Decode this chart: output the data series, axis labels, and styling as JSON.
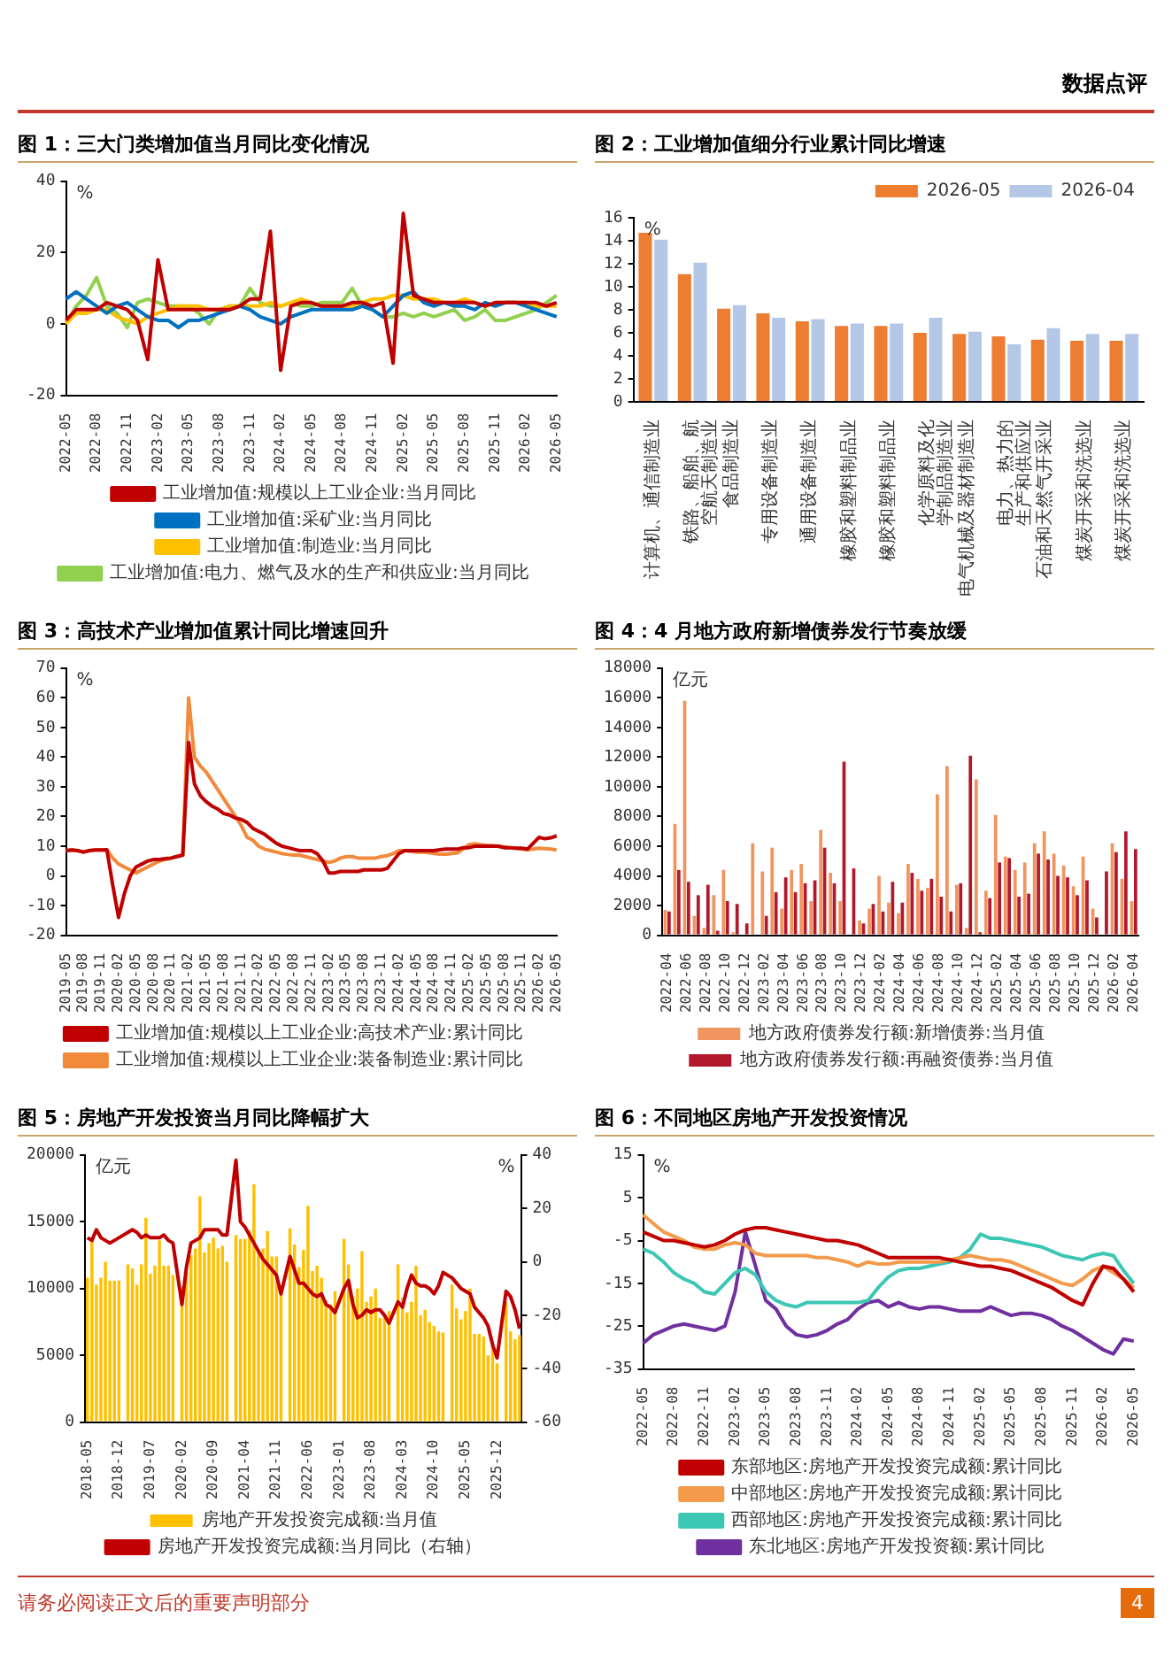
{
  "chart_data": [
    {
      "type": "line",
      "title": "图 1：三大门类增加值当月同比变化情况",
      "ylabel": "%",
      "ylim": [
        -20,
        40
      ],
      "yticks": [
        -20,
        0,
        20,
        40
      ],
      "legend": "bottom",
      "annotations": [
        "数据点评"
      ],
      "categories": [
        "2022-05",
        null,
        null,
        "2022-08",
        null,
        null,
        "2022-11",
        null,
        null,
        "2023-02",
        null,
        null,
        "2023-05",
        null,
        null,
        "2023-08",
        null,
        null,
        "2023-11",
        null,
        null,
        "2024-02",
        null,
        null,
        "2024-05",
        null,
        null,
        "2024-08",
        null,
        null,
        "2024-11",
        null,
        null,
        "2025-02",
        null,
        null,
        "2025-05",
        null,
        null,
        "2025-08",
        null,
        null,
        "2025-11",
        null,
        null,
        "2026-02",
        null,
        null,
        "2026-05"
      ],
      "series": [
        {
          "name": "工业增加值:规模以上工业企业:当月同比",
          "color": "#c00000",
          "values": [
            1,
            4,
            4,
            4,
            6,
            5,
            4,
            1,
            -10,
            18,
            4,
            4,
            4,
            4,
            4,
            4,
            4,
            5,
            7,
            7,
            26,
            -13,
            5,
            6,
            6,
            5,
            5,
            5,
            6,
            6,
            5,
            6,
            -11,
            31,
            8,
            7,
            6,
            6,
            6,
            6,
            6,
            5,
            6,
            6,
            6,
            6,
            6,
            5,
            6
          ]
        },
        {
          "name": "工业增加值:采矿业:当月同比",
          "color": "#0070c0",
          "values": [
            7,
            9,
            7,
            5,
            3,
            5,
            6,
            4,
            2,
            1,
            1,
            -1,
            1,
            1,
            2,
            3,
            4,
            5,
            4,
            2,
            1,
            0,
            2,
            3,
            4,
            4,
            4,
            4,
            4,
            5,
            4,
            2,
            5,
            8,
            9,
            6,
            5,
            6,
            5,
            5,
            4,
            6,
            5,
            6,
            6,
            5,
            4,
            3,
            2
          ]
        },
        {
          "name": "工业增加值:制造业:当月同比",
          "color": "#ffc000",
          "values": [
            0,
            3,
            3,
            4,
            4,
            2,
            1,
            0,
            2,
            3,
            4,
            5,
            5,
            5,
            4,
            4,
            5,
            5,
            5,
            5,
            6,
            5,
            6,
            7,
            6,
            5,
            5,
            5,
            5,
            6,
            7,
            7,
            8,
            8,
            7,
            7,
            7,
            6,
            6,
            7,
            6,
            5,
            6,
            6,
            6,
            6,
            5,
            5,
            5
          ]
        },
        {
          "name": "工业增加值:电力、燃气及水的生产和供应业:当月同比",
          "color": "#92d050",
          "values": [
            0,
            5,
            8,
            13,
            5,
            3,
            -1,
            6,
            7,
            6,
            5,
            5,
            5,
            3,
            0,
            4,
            5,
            5,
            10,
            6,
            5,
            5,
            6,
            5,
            5,
            6,
            6,
            6,
            10,
            5,
            4,
            2,
            2,
            3,
            2,
            3,
            2,
            3,
            4,
            1,
            2,
            4,
            1,
            1,
            2,
            3,
            4,
            6,
            8
          ]
        }
      ]
    },
    {
      "type": "bar",
      "title": "图 2：工业增加值细分行业累计同比增速",
      "ylabel": "%",
      "ylim": [
        0,
        16
      ],
      "yticks": [
        0,
        2,
        4,
        6,
        8,
        10,
        12,
        14,
        16
      ],
      "legend": "top right",
      "categories": [
        "计算机、通信制造业",
        "铁路、船舶、航空航天制造业",
        "食品制造业",
        "专用设备制造业",
        "通用设备制造业",
        "橡胶和塑料制品业",
        "橡胶和塑料制品业",
        "化学原料及化学制品制造业",
        "电气机械及器材制造业",
        "电力、热力的生产和供应业",
        "石油和天然气开采业",
        "煤炭开采和洗选业",
        "煤炭开采和洗选业"
      ],
      "series": [
        {
          "name": "2026-05",
          "color": "#ed7d31",
          "values": [
            14.7,
            11.1,
            8.1,
            7.7,
            7.0,
            6.6,
            6.6,
            6.0,
            5.9,
            5.7,
            5.4,
            5.3,
            5.3
          ]
        },
        {
          "name": "2026-04",
          "color": "#b4c7e7",
          "values": [
            14.1,
            12.1,
            8.4,
            7.3,
            7.2,
            6.8,
            6.8,
            7.3,
            6.1,
            5.0,
            6.4,
            5.9,
            5.9
          ]
        }
      ]
    },
    {
      "type": "line",
      "title": "图 3：高技术产业增加值累计同比增速回升",
      "ylabel": "%",
      "ylim": [
        -20,
        70
      ],
      "yticks": [
        -20,
        -10,
        0,
        10,
        20,
        30,
        40,
        50,
        60,
        70
      ],
      "legend": "bottom",
      "categories": [
        "2019-05",
        null,
        null,
        "2019-08",
        null,
        null,
        "2019-11",
        null,
        null,
        "2020-02",
        null,
        null,
        "2020-05",
        null,
        null,
        "2020-08",
        null,
        null,
        "2020-11",
        null,
        null,
        "2021-02",
        null,
        null,
        "2021-05",
        null,
        null,
        "2021-08",
        null,
        null,
        "2021-11",
        null,
        null,
        "2022-02",
        null,
        null,
        "2022-05",
        null,
        null,
        "2022-08",
        null,
        null,
        "2022-11",
        null,
        null,
        "2023-02",
        null,
        null,
        "2023-05",
        null,
        null,
        "2023-08",
        null,
        null,
        "2023-11",
        null,
        null,
        "2024-02",
        null,
        null,
        "2024-05",
        null,
        null,
        "2024-08",
        null,
        null,
        "2024-11",
        null,
        null,
        "2025-02",
        null,
        null,
        "2025-05",
        null,
        null,
        "2025-08",
        null,
        null,
        "2025-11",
        null,
        null,
        "2026-02",
        null,
        null,
        "2026-05"
      ],
      "series": [
        {
          "name": "工业增加值:规模以上工业企业:高技术产业:累计同比",
          "color": "#c00000",
          "values": [
            8.5,
            8.7,
            8.5,
            8,
            8.5,
            8.7,
            8.7,
            8.8,
            -3,
            -14,
            -6,
            0,
            3,
            4,
            5,
            5.5,
            5.5,
            5.8,
            6,
            6.5,
            7,
            45,
            31,
            27,
            25,
            23.5,
            22.5,
            21,
            20.5,
            19.5,
            19,
            18,
            16,
            15,
            14,
            12.5,
            11,
            10,
            9.5,
            9,
            8.5,
            8.5,
            8.5,
            7.5,
            5,
            1,
            1,
            1.5,
            1.5,
            1.5,
            1.5,
            2,
            2,
            2,
            2,
            2.5,
            5,
            7.5,
            8.5,
            8.5,
            8.5,
            8.5,
            8.5,
            8.5,
            8.8,
            9,
            9,
            9,
            9.5,
            9.5,
            10,
            10,
            10,
            10,
            10,
            9.5,
            9.5,
            9.3,
            9.3,
            9,
            11,
            13,
            12.5,
            12.8,
            13.5
          ]
        },
        {
          "name": "工业增加值:规模以上工业企业:装备制造业:累计同比",
          "color": "#f28a3c",
          "values": [
            8.5,
            8.7,
            8.5,
            8,
            8.5,
            8.7,
            8.7,
            8.8,
            6,
            4,
            3,
            2,
            1,
            2,
            3,
            4,
            5,
            5.5,
            6,
            6.6,
            7,
            60,
            40,
            37,
            35,
            32,
            29,
            26,
            23,
            20,
            17,
            13,
            12,
            10,
            9,
            8.5,
            8,
            7.5,
            7.2,
            7,
            7,
            6.5,
            6,
            5.5,
            5,
            4.5,
            5,
            6,
            6.5,
            6.5,
            6,
            6,
            6,
            6,
            6.5,
            6.8,
            7.5,
            8.5,
            8.5,
            8.3,
            8,
            8,
            7.8,
            7.5,
            7.3,
            7.3,
            7.5,
            7.7,
            9,
            10.5,
            10.8,
            10.5,
            10.3,
            10.2,
            10,
            9.8,
            9.5,
            9.3,
            9,
            8.8,
            9,
            9.3,
            9.2,
            9,
            8.7
          ]
        }
      ]
    },
    {
      "type": "bar",
      "title": "图 4：4 月地方政府新增债券发行节奏放缓",
      "ylabel": "亿元",
      "ylim": [
        0,
        18000
      ],
      "yticks": [
        0,
        2000,
        4000,
        6000,
        8000,
        10000,
        12000,
        14000,
        16000,
        18000
      ],
      "legend": "bottom",
      "categories": [
        "2022-04",
        null,
        "2022-06",
        null,
        "2022-08",
        null,
        "2022-10",
        null,
        "2022-12",
        null,
        "2023-02",
        null,
        "2023-04",
        null,
        "2023-06",
        null,
        "2023-08",
        null,
        "2023-10",
        null,
        "2023-12",
        null,
        "2024-02",
        null,
        "2024-04",
        null,
        "2024-06",
        null,
        "2024-08",
        null,
        "2024-10",
        null,
        "2024-12",
        null,
        "2025-02",
        null,
        "2025-04",
        null,
        "2025-06",
        null,
        "2025-08",
        null,
        "2025-10",
        null,
        "2025-12",
        null,
        "2026-02",
        null,
        "2026-04"
      ],
      "series": [
        {
          "name": "地方政府债券发行额:新增债券:当月值",
          "color": "#f0955f",
          "values": [
            1700,
            7500,
            15800,
            1300,
            500,
            2700,
            4400,
            200,
            null,
            6200,
            4300,
            5900,
            1800,
            4400,
            4800,
            2300,
            7100,
            4200,
            2300,
            null,
            1000,
            1800,
            4000,
            2200,
            1500,
            4800,
            3800,
            3200,
            9500,
            11400,
            3400,
            500,
            10500,
            3000,
            8100,
            5300,
            4400,
            4900,
            6200,
            7000,
            5500,
            4700,
            3300,
            5300,
            1800,
            null,
            6200,
            3800,
            2300
          ]
        },
        {
          "name": "地方政府债券发行额:再融资债券:当月值",
          "color": "#b2182b",
          "values": [
            1600,
            4400,
            3600,
            2700,
            3400,
            300,
            2300,
            2100,
            800,
            null,
            1300,
            2900,
            3900,
            2900,
            3500,
            3700,
            5900,
            3500,
            11700,
            4500,
            800,
            2100,
            1600,
            3600,
            2200,
            4200,
            3000,
            3800,
            2600,
            1600,
            3500,
            12100,
            200,
            2500,
            4900,
            5200,
            2600,
            2800,
            5500,
            5100,
            4000,
            3900,
            2700,
            3700,
            1200,
            4300,
            5600,
            7000,
            5800
          ]
        }
      ]
    },
    {
      "type": "bar",
      "title": "图 5：房地产开发投资当月同比降幅扩大",
      "ylabel": "亿元",
      "y2label": "%",
      "ylim": [
        0,
        20000
      ],
      "yticks": [
        0,
        5000,
        10000,
        15000,
        20000
      ],
      "y2lim": [
        -60,
        40
      ],
      "y2ticks": [
        -60,
        -40,
        -20,
        0,
        20,
        40
      ],
      "legend": "bottom",
      "categories": [
        "2018-05",
        null,
        null,
        null,
        null,
        null,
        null,
        "2018-12",
        null,
        null,
        null,
        null,
        null,
        null,
        "2019-07",
        null,
        null,
        null,
        null,
        null,
        null,
        "2020-02",
        null,
        null,
        null,
        null,
        null,
        null,
        "2020-09",
        null,
        null,
        null,
        null,
        null,
        null,
        "2021-04",
        null,
        null,
        null,
        null,
        null,
        null,
        "2021-11",
        null,
        null,
        null,
        null,
        null,
        null,
        "2022-06",
        null,
        null,
        null,
        null,
        null,
        null,
        "2023-01",
        null,
        null,
        null,
        null,
        null,
        null,
        "2023-08",
        null,
        null,
        null,
        null,
        null,
        null,
        "2024-03",
        null,
        null,
        null,
        null,
        null,
        null,
        "2024-10",
        null,
        null,
        null,
        null,
        null,
        null,
        "2025-05",
        null,
        null,
        null,
        null,
        null,
        null,
        "2025-12",
        null,
        null,
        null,
        null,
        null
      ],
      "series": [
        {
          "name": "房地产开发投资完成额:当月值",
          "color": "#ffc000",
          "values": [
            10800,
            13800,
            10300,
            10800,
            12000,
            10600,
            10600,
            10600,
            null,
            11800,
            11500,
            10300,
            11800,
            15300,
            11100,
            11700,
            13600,
            11700,
            11700,
            11000,
            null,
            10100,
            11300,
            12500,
            13000,
            16900,
            12700,
            13400,
            13800,
            13000,
            13200,
            12000,
            null,
            14000,
            13700,
            13700,
            14300,
            17800,
            12800,
            13000,
            14300,
            12400,
            12400,
            9900,
            null,
            14500,
            13300,
            11600,
            12900,
            16200,
            11300,
            11700,
            10800,
            9100,
            8800,
            9800,
            null,
            13700,
            11800,
            9400,
            10000,
            12800,
            9000,
            9400,
            10000,
            7800,
            8000,
            8300,
            null,
            11800,
            9300,
            8200,
            9000,
            11700,
            8000,
            8400,
            7500,
            7200,
            6800,
            6700,
            null,
            10300,
            8500,
            7700,
            8300,
            10000,
            6600,
            6600,
            6400,
            5000,
            5700,
            4400,
            null,
            9000,
            6800,
            6200,
            6500
          ]
        },
        {
          "name": "房地产开发投资完成额:当月同比（右轴）",
          "color": "#c00000",
          "type": "line",
          "axis": "y2",
          "values": [
            9,
            8,
            12,
            9,
            8,
            7,
            8,
            9,
            null,
            11,
            12,
            11,
            9,
            10,
            9,
            9,
            9,
            10,
            8,
            7,
            null,
            -16,
            -2,
            7,
            8,
            9,
            12,
            12,
            12,
            12,
            10,
            10,
            null,
            38,
            15,
            13,
            10,
            7,
            4,
            1,
            -1,
            -3,
            -5,
            -12,
            null,
            2,
            -3,
            -8,
            -8,
            -10,
            -12,
            -13,
            -12,
            -16,
            -17,
            -19,
            null,
            -10,
            -7,
            -16,
            -21,
            -20,
            -18,
            -19,
            -18,
            -18,
            -20,
            -23,
            null,
            -15,
            -17,
            -10,
            -5,
            -8,
            -9,
            -9,
            -10,
            -12,
            -9,
            -4,
            null,
            -6,
            -8,
            -10,
            -11,
            -12,
            -17,
            -19,
            -21,
            -24,
            -31,
            -36,
            null,
            -11,
            -13,
            -18,
            -25
          ]
        }
      ]
    },
    {
      "type": "line",
      "title": "图 6：不同地区房地产开发投资情况",
      "ylabel": "%",
      "ylim": [
        -35,
        15
      ],
      "yticks": [
        -35,
        -25,
        -15,
        -5,
        5,
        15
      ],
      "legend": "bottom",
      "annotations": [
        "请务必阅读正文后的重要声明部分",
        "4"
      ],
      "categories": [
        "2022-05",
        null,
        null,
        "2022-08",
        null,
        null,
        "2022-11",
        null,
        null,
        "2023-02",
        null,
        null,
        "2023-05",
        null,
        null,
        "2023-08",
        null,
        null,
        "2023-11",
        null,
        null,
        "2024-02",
        null,
        null,
        "2024-05",
        null,
        null,
        "2024-08",
        null,
        null,
        "2024-11",
        null,
        null,
        "2025-02",
        null,
        null,
        "2025-05",
        null,
        null,
        "2025-08",
        null,
        null,
        "2025-11",
        null,
        null,
        "2026-02",
        null,
        null,
        "2026-05"
      ],
      "series": [
        {
          "name": "东部地区:房地产开发投资完成额:累计同比",
          "color": "#c00000",
          "values": [
            -3,
            -4,
            -5,
            -5,
            -5.5,
            -6,
            -6.5,
            -6,
            -5,
            -3.5,
            -2.5,
            -2,
            -2,
            -2.5,
            -3,
            -3.5,
            -4,
            -4.5,
            -5,
            -5,
            -5.5,
            -6,
            -7,
            -8,
            -9,
            -9,
            -9,
            -9,
            -9,
            -9,
            -9.5,
            -10,
            -10.5,
            -11,
            -11,
            -11.5,
            -12,
            -13,
            -14,
            -15,
            -16,
            -17.5,
            -19,
            -20,
            -15,
            -11,
            -11.5,
            -14,
            -17
          ]
        },
        {
          "name": "中部地区:房地产开发投资完成额:累计同比",
          "color": "#f39a4b",
          "values": [
            1,
            -1,
            -3,
            -4,
            -5,
            -6.5,
            -7,
            -7,
            -6,
            -5.5,
            -6,
            -8,
            -8.5,
            -8.5,
            -8.5,
            -8.5,
            -8.5,
            -9,
            -9,
            -9.5,
            -10,
            -11,
            -10,
            -10.5,
            -10.5,
            -10,
            -10,
            -10,
            -10,
            -10,
            -9.5,
            -9,
            -8.5,
            -9,
            -9.5,
            -9.5,
            -10,
            -11,
            -12,
            -13,
            -14,
            -15,
            -15.5,
            -14,
            -12,
            -11,
            -12.5,
            -14,
            -16
          ]
        },
        {
          "name": "西部地区:房地产开发投资完成额:累计同比",
          "color": "#3cc7b5",
          "values": [
            -7,
            -8,
            -10,
            -12.5,
            -14,
            -15,
            -17,
            -17.5,
            -15,
            -12.5,
            -11.5,
            -13,
            -17,
            -19,
            -20,
            -20.5,
            -19.5,
            -19.5,
            -19.5,
            -19.5,
            -19.5,
            -19.5,
            -19,
            -16,
            -13.5,
            -12,
            -11.5,
            -11.5,
            -11,
            -10.5,
            -10,
            -9,
            -7,
            -3.5,
            -4.5,
            -4.5,
            -5,
            -5.5,
            -6,
            -6.5,
            -7.5,
            -8.5,
            -9,
            -9.5,
            -8.5,
            -8,
            -8.5,
            -12,
            -15
          ]
        },
        {
          "name": "东北地区:房地产开发投资额:累计同比",
          "color": "#7030a0",
          "values": [
            -29,
            -27,
            -26,
            -25,
            -24.5,
            -25,
            -25.5,
            -26,
            -25,
            -17,
            -3,
            -11,
            -19,
            -21,
            -25,
            -27,
            -27.5,
            -27,
            -26,
            -24.5,
            -23.5,
            -21,
            -19.5,
            -19,
            -20.5,
            -19.5,
            -20.5,
            -21,
            -20.5,
            -20.5,
            -21,
            -21.5,
            -21.5,
            -21.5,
            -20.5,
            -21.5,
            -22.5,
            -22,
            -22,
            -22.5,
            -23.5,
            -25,
            -26,
            -27.5,
            -29,
            -30.5,
            -31.5,
            -28,
            -28.5
          ]
        }
      ]
    }
  ]
}
